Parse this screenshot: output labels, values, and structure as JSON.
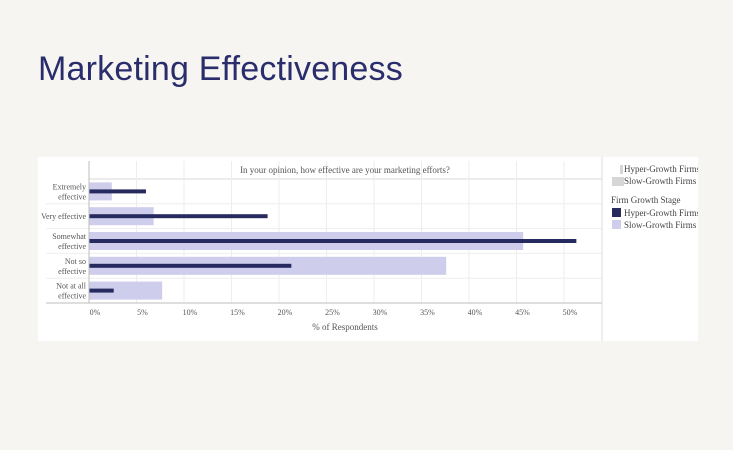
{
  "page": {
    "title": "Marketing Effectiveness"
  },
  "legend": {
    "size_legend": [
      {
        "label": "Hyper-Growth Firms"
      },
      {
        "label": "Slow-Growth Firms"
      }
    ],
    "color_legend_title": "Firm Growth Stage",
    "color_legend": [
      {
        "label": "Hyper-Growth Firms",
        "color": "#262a5e"
      },
      {
        "label": "Slow-Growth Firms",
        "color": "#cecdec"
      }
    ]
  },
  "chart_data": {
    "type": "bar",
    "orientation": "horizontal",
    "title": "In your opinion, how effective are your marketing efforts?",
    "xlabel": "% of Respondents",
    "ylabel": "",
    "categories": [
      [
        "Extremely",
        "effective"
      ],
      [
        "Very effective"
      ],
      [
        "Somewhat",
        "effective"
      ],
      [
        "Not so",
        "effective"
      ],
      [
        "Not at all",
        "effective"
      ]
    ],
    "series": [
      {
        "name": "Slow-Growth Firms",
        "color": "#cecdec",
        "values": [
          2.4,
          6.8,
          45.7,
          37.6,
          7.7
        ]
      },
      {
        "name": "Hyper-Growth Firms",
        "color": "#262a5e",
        "values": [
          6.0,
          18.8,
          51.3,
          21.3,
          2.6
        ]
      }
    ],
    "xlim": [
      0,
      54
    ],
    "x_ticks": [
      "0%",
      "5%",
      "10%",
      "15%",
      "20%",
      "25%",
      "30%",
      "35%",
      "40%",
      "45%",
      "50%"
    ],
    "x_tick_values": [
      0,
      5,
      10,
      15,
      20,
      25,
      30,
      35,
      40,
      45,
      50
    ],
    "grid": true,
    "legend_position": "right"
  }
}
